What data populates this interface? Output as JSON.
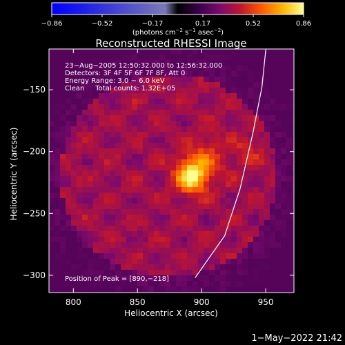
{
  "colorbar": {
    "min": -0.86,
    "max": 0.86,
    "tick_labels": [
      "−0.86",
      "−0.52",
      "−0.17",
      "0.17",
      "0.52",
      "0.86"
    ],
    "units_label": "(photons cm",
    "units_sup1": "−2",
    "units_mid": " s",
    "units_sup2": "−1",
    "units_end": " asec",
    "units_sup3": "−2",
    "units_close": ")",
    "colormap": [
      "#000000",
      "#3a004a",
      "#7a0a6e",
      "#c0162e",
      "#ff5a00",
      "#ffb400",
      "#ffff90"
    ],
    "negative_colormap": [
      "#0000ff",
      "#1a1aee",
      "#3a3ad8",
      "#5a5ac8",
      "#7a7ab8"
    ]
  },
  "chart_data": {
    "type": "heatmap",
    "title": "Reconstructed RHESSI Image",
    "xlabel": "Heliocentric X (arcsec)",
    "ylabel": "Heliocentric Y (arcsec)",
    "xlim": [
      781,
      972
    ],
    "ylim": [
      -314,
      -117
    ],
    "x_ticks": [
      800,
      850,
      900,
      950
    ],
    "y_ticks": [
      -150,
      -200,
      -250,
      -300
    ],
    "x_tick_labels": [
      "800",
      "850",
      "900",
      "950"
    ],
    "y_tick_labels": [
      "−150",
      "−200",
      "−250",
      "−300"
    ],
    "annotations": [
      "23−Aug−2005 12:50:32.000 to 12:56:32.000",
      "Detectors: 3F 4F 5F 6F 7F 8F, Att 0",
      "Energy Range: 3.0 − 6.0 keV",
      "Clean     Total counts: 1.32E+05"
    ],
    "peak_label": "Position of Peak = [890,−218]",
    "peak": {
      "x": 890,
      "y": -218,
      "value": 0.86
    },
    "secondary_source": {
      "x": 900,
      "y": -205,
      "value": 0.45
    },
    "limb_arc_points": [
      [
        895,
        -302
      ],
      [
        918,
        -268
      ],
      [
        930,
        -230
      ],
      [
        940,
        -185
      ],
      [
        947,
        -148
      ],
      [
        950,
        -118
      ]
    ],
    "grid": false
  },
  "footer": {
    "timestamp": "1−May−2022 21:42"
  }
}
